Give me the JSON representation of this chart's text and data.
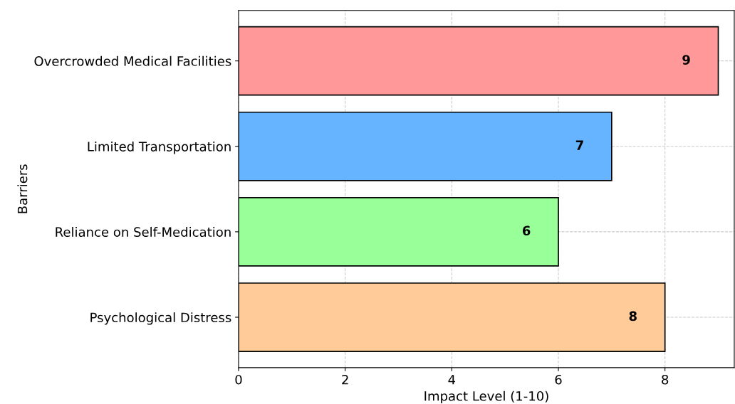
{
  "chart_data": {
    "type": "bar",
    "orientation": "horizontal",
    "xlabel": "Impact Level (1-10)",
    "ylabel": "Barriers",
    "categories": [
      "Overcrowded Medical Facilities",
      "Limited Transportation",
      "Reliance on Self-Medication",
      "Psychological Distress"
    ],
    "values": [
      9,
      7,
      6,
      8
    ],
    "colors": [
      "#ff9999",
      "#66b3ff",
      "#99ff99",
      "#ffcc99"
    ],
    "xlim": [
      0,
      9.3
    ],
    "xticks": [
      0,
      2,
      4,
      6,
      8
    ],
    "grid": true,
    "data_labels": true
  }
}
